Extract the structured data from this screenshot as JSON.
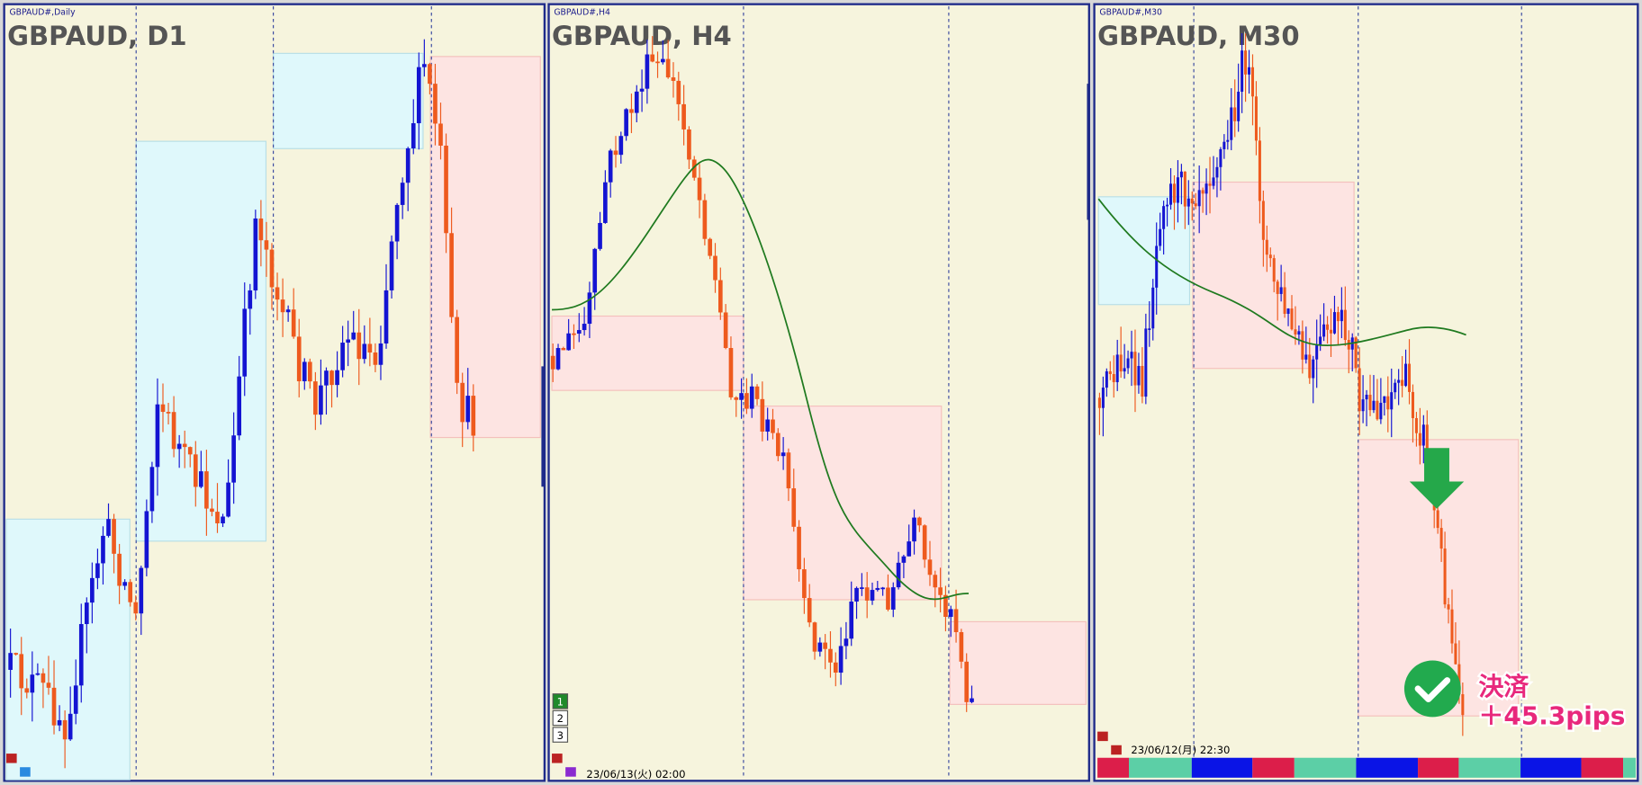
{
  "panels": [
    {
      "caption": "GBPAUD#,Daily",
      "title": "GBPAUD, D1"
    },
    {
      "caption": "GBPAUD#,H4",
      "title": "GBPAUD, H4",
      "buttons": [
        "1",
        "2",
        "3"
      ],
      "timestamp": "23/06/13(火) 02:00"
    },
    {
      "caption": "GBPAUD#,M30",
      "title": "GBPAUD, M30",
      "timestamp": "23/06/12(月) 22:30",
      "annotation": {
        "label": "決済",
        "result": "＋45.3pips"
      }
    }
  ]
}
